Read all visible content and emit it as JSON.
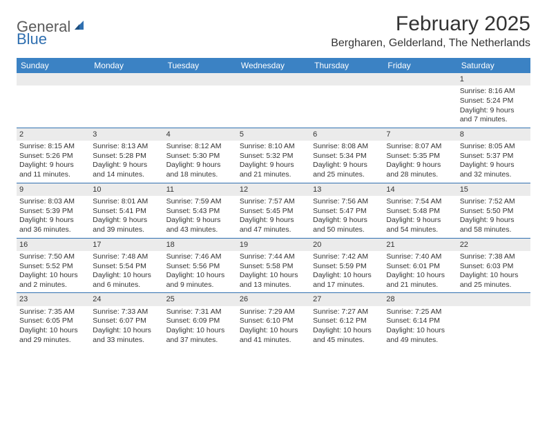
{
  "logo": {
    "general": "General",
    "blue": "Blue"
  },
  "title": "February 2025",
  "location": "Bergharen, Gelderland, The Netherlands",
  "weekdays": [
    "Sunday",
    "Monday",
    "Tuesday",
    "Wednesday",
    "Thursday",
    "Friday",
    "Saturday"
  ],
  "colors": {
    "header_bar": "#3b82c4",
    "week_border": "#2f6fb0",
    "daynum_bg": "#ebebeb",
    "text": "#333333",
    "logo_gray": "#5a5a5a",
    "logo_blue": "#2f6fb0"
  },
  "weeks": [
    [
      {
        "n": "",
        "sr": "",
        "ss": "",
        "dl": ""
      },
      {
        "n": "",
        "sr": "",
        "ss": "",
        "dl": ""
      },
      {
        "n": "",
        "sr": "",
        "ss": "",
        "dl": ""
      },
      {
        "n": "",
        "sr": "",
        "ss": "",
        "dl": ""
      },
      {
        "n": "",
        "sr": "",
        "ss": "",
        "dl": ""
      },
      {
        "n": "",
        "sr": "",
        "ss": "",
        "dl": ""
      },
      {
        "n": "1",
        "sr": "Sunrise: 8:16 AM",
        "ss": "Sunset: 5:24 PM",
        "dl": "Daylight: 9 hours and 7 minutes."
      }
    ],
    [
      {
        "n": "2",
        "sr": "Sunrise: 8:15 AM",
        "ss": "Sunset: 5:26 PM",
        "dl": "Daylight: 9 hours and 11 minutes."
      },
      {
        "n": "3",
        "sr": "Sunrise: 8:13 AM",
        "ss": "Sunset: 5:28 PM",
        "dl": "Daylight: 9 hours and 14 minutes."
      },
      {
        "n": "4",
        "sr": "Sunrise: 8:12 AM",
        "ss": "Sunset: 5:30 PM",
        "dl": "Daylight: 9 hours and 18 minutes."
      },
      {
        "n": "5",
        "sr": "Sunrise: 8:10 AM",
        "ss": "Sunset: 5:32 PM",
        "dl": "Daylight: 9 hours and 21 minutes."
      },
      {
        "n": "6",
        "sr": "Sunrise: 8:08 AM",
        "ss": "Sunset: 5:34 PM",
        "dl": "Daylight: 9 hours and 25 minutes."
      },
      {
        "n": "7",
        "sr": "Sunrise: 8:07 AM",
        "ss": "Sunset: 5:35 PM",
        "dl": "Daylight: 9 hours and 28 minutes."
      },
      {
        "n": "8",
        "sr": "Sunrise: 8:05 AM",
        "ss": "Sunset: 5:37 PM",
        "dl": "Daylight: 9 hours and 32 minutes."
      }
    ],
    [
      {
        "n": "9",
        "sr": "Sunrise: 8:03 AM",
        "ss": "Sunset: 5:39 PM",
        "dl": "Daylight: 9 hours and 36 minutes."
      },
      {
        "n": "10",
        "sr": "Sunrise: 8:01 AM",
        "ss": "Sunset: 5:41 PM",
        "dl": "Daylight: 9 hours and 39 minutes."
      },
      {
        "n": "11",
        "sr": "Sunrise: 7:59 AM",
        "ss": "Sunset: 5:43 PM",
        "dl": "Daylight: 9 hours and 43 minutes."
      },
      {
        "n": "12",
        "sr": "Sunrise: 7:57 AM",
        "ss": "Sunset: 5:45 PM",
        "dl": "Daylight: 9 hours and 47 minutes."
      },
      {
        "n": "13",
        "sr": "Sunrise: 7:56 AM",
        "ss": "Sunset: 5:47 PM",
        "dl": "Daylight: 9 hours and 50 minutes."
      },
      {
        "n": "14",
        "sr": "Sunrise: 7:54 AM",
        "ss": "Sunset: 5:48 PM",
        "dl": "Daylight: 9 hours and 54 minutes."
      },
      {
        "n": "15",
        "sr": "Sunrise: 7:52 AM",
        "ss": "Sunset: 5:50 PM",
        "dl": "Daylight: 9 hours and 58 minutes."
      }
    ],
    [
      {
        "n": "16",
        "sr": "Sunrise: 7:50 AM",
        "ss": "Sunset: 5:52 PM",
        "dl": "Daylight: 10 hours and 2 minutes."
      },
      {
        "n": "17",
        "sr": "Sunrise: 7:48 AM",
        "ss": "Sunset: 5:54 PM",
        "dl": "Daylight: 10 hours and 6 minutes."
      },
      {
        "n": "18",
        "sr": "Sunrise: 7:46 AM",
        "ss": "Sunset: 5:56 PM",
        "dl": "Daylight: 10 hours and 9 minutes."
      },
      {
        "n": "19",
        "sr": "Sunrise: 7:44 AM",
        "ss": "Sunset: 5:58 PM",
        "dl": "Daylight: 10 hours and 13 minutes."
      },
      {
        "n": "20",
        "sr": "Sunrise: 7:42 AM",
        "ss": "Sunset: 5:59 PM",
        "dl": "Daylight: 10 hours and 17 minutes."
      },
      {
        "n": "21",
        "sr": "Sunrise: 7:40 AM",
        "ss": "Sunset: 6:01 PM",
        "dl": "Daylight: 10 hours and 21 minutes."
      },
      {
        "n": "22",
        "sr": "Sunrise: 7:38 AM",
        "ss": "Sunset: 6:03 PM",
        "dl": "Daylight: 10 hours and 25 minutes."
      }
    ],
    [
      {
        "n": "23",
        "sr": "Sunrise: 7:35 AM",
        "ss": "Sunset: 6:05 PM",
        "dl": "Daylight: 10 hours and 29 minutes."
      },
      {
        "n": "24",
        "sr": "Sunrise: 7:33 AM",
        "ss": "Sunset: 6:07 PM",
        "dl": "Daylight: 10 hours and 33 minutes."
      },
      {
        "n": "25",
        "sr": "Sunrise: 7:31 AM",
        "ss": "Sunset: 6:09 PM",
        "dl": "Daylight: 10 hours and 37 minutes."
      },
      {
        "n": "26",
        "sr": "Sunrise: 7:29 AM",
        "ss": "Sunset: 6:10 PM",
        "dl": "Daylight: 10 hours and 41 minutes."
      },
      {
        "n": "27",
        "sr": "Sunrise: 7:27 AM",
        "ss": "Sunset: 6:12 PM",
        "dl": "Daylight: 10 hours and 45 minutes."
      },
      {
        "n": "28",
        "sr": "Sunrise: 7:25 AM",
        "ss": "Sunset: 6:14 PM",
        "dl": "Daylight: 10 hours and 49 minutes."
      },
      {
        "n": "",
        "sr": "",
        "ss": "",
        "dl": ""
      }
    ]
  ]
}
